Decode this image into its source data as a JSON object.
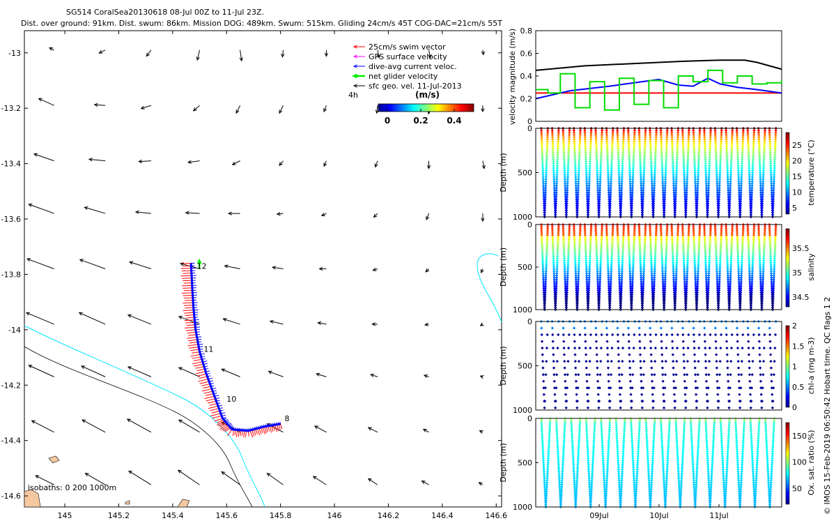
{
  "header": {
    "title_line1": "SG514 CoralSea20130618 08-Jul 00Z to 11-Jul 23Z.",
    "title_line2": "Dist. over ground: 91km. Dist. swum: 86km. Mission DOG: 489km. Swum: 515km. Gliding 24cm/s 45T COG-DAC=21cm/s 55T"
  },
  "credit": "© IMOS 15-Feb-2019 06:50:42 Hobart time. QC flags 1  2",
  "chart_data": [
    {
      "id": "map",
      "type": "vector-map",
      "xlim": [
        144.85,
        146.62
      ],
      "ylim": [
        -14.64,
        -12.92
      ],
      "xticks": [
        "145",
        "145.2",
        "145.4",
        "145.6",
        "145.8",
        "146",
        "146.2",
        "146.4",
        "146.6"
      ],
      "yticks": [
        "-13",
        "-13.2",
        "-13.4",
        "-13.6",
        "-13.8",
        "-14",
        "-14.2",
        "-14.4",
        "-14.6"
      ],
      "legend": {
        "position": "top-right",
        "items": [
          {
            "label": "25cm/s swim vector",
            "color": "#ff0000"
          },
          {
            "label": "GPS surface velocity",
            "color": "#ff00ff"
          },
          {
            "label": "dive-avg current veloc.",
            "color": "#0000ff"
          },
          {
            "label": "net glider velocity",
            "color": "#00ee00"
          },
          {
            "label": "sfc geo. vel. 11-Jul-2013",
            "color": "#000000"
          }
        ]
      },
      "colorbar": {
        "title": "(m/s)",
        "ticks": [
          "0",
          "0.2",
          "0.4"
        ]
      },
      "scale_label": "4h",
      "isobath_label": "isobaths: 0   200  1000m",
      "track": [
        [
          145.8,
          -14.34
        ],
        [
          145.74,
          -14.35
        ],
        [
          145.68,
          -14.365
        ],
        [
          145.62,
          -14.36
        ],
        [
          145.585,
          -14.32
        ],
        [
          145.555,
          -14.24
        ],
        [
          145.525,
          -14.16
        ],
        [
          145.5,
          -14.08
        ],
        [
          145.485,
          -14.0
        ],
        [
          145.477,
          -13.92
        ],
        [
          145.472,
          -13.84
        ],
        [
          145.468,
          -13.76
        ]
      ],
      "track_labels": [
        {
          "text": "12",
          "lon": 145.49,
          "lat": -13.78
        },
        {
          "text": "11",
          "lon": 145.515,
          "lat": -14.08
        },
        {
          "text": "10",
          "lon": 145.6,
          "lat": -14.26
        },
        {
          "text": "8",
          "lon": 145.815,
          "lat": -14.33
        }
      ],
      "geo_velocity_grid": {
        "lons": [
          144.96,
          145.15,
          145.32,
          145.5,
          145.65,
          145.81,
          145.97,
          146.16,
          146.35,
          146.55
        ],
        "lats": [
          -12.99,
          -13.19,
          -13.39,
          -13.58,
          -13.78,
          -13.98,
          -14.17,
          -14.37,
          -14.56
        ],
        "vectors": [
          [
            [
              -0.06,
              0.03
            ],
            [
              -0.08,
              -0.04
            ],
            [
              -0.06,
              -0.08
            ],
            [
              -0.03,
              -0.13
            ],
            [
              0.02,
              -0.14
            ],
            [
              -0.01,
              -0.09
            ],
            [
              0,
              -0.08
            ],
            [
              0.02,
              -0.1
            ],
            [
              0.02,
              -0.1
            ],
            [
              0.01,
              -0.06
            ]
          ],
          [
            [
              -0.2,
              0.09
            ],
            [
              -0.14,
              0.01
            ],
            [
              -0.13,
              -0.04
            ],
            [
              -0.08,
              -0.07
            ],
            [
              -0.05,
              -0.1
            ],
            [
              -0.05,
              -0.1
            ],
            [
              -0.03,
              -0.08
            ],
            [
              -0.01,
              -0.1
            ],
            [
              0,
              -0.11
            ],
            [
              0,
              -0.08
            ]
          ],
          [
            [
              -0.26,
              0.09
            ],
            [
              -0.21,
              0.02
            ],
            [
              -0.16,
              -0.01
            ],
            [
              -0.15,
              -0.02
            ],
            [
              -0.1,
              -0.05
            ],
            [
              -0.05,
              -0.06
            ],
            [
              -0.03,
              -0.07
            ],
            [
              -0.03,
              -0.08
            ],
            [
              0,
              -0.1
            ],
            [
              0.02,
              -0.1
            ]
          ],
          [
            [
              -0.33,
              0.12
            ],
            [
              -0.27,
              0.08
            ],
            [
              -0.2,
              0.02
            ],
            [
              -0.18,
              0.01
            ],
            [
              -0.15,
              0
            ],
            [
              -0.08,
              -0.01
            ],
            [
              -0.06,
              -0.03
            ],
            [
              -0.05,
              -0.05
            ],
            [
              -0.03,
              -0.08
            ],
            [
              0,
              -0.1
            ]
          ],
          [
            [
              -0.35,
              0.13
            ],
            [
              -0.33,
              0.12
            ],
            [
              -0.28,
              0.09
            ],
            [
              -0.25,
              0.07
            ],
            [
              -0.2,
              0.04
            ],
            [
              -0.14,
              0.02
            ],
            [
              -0.09,
              0
            ],
            [
              -0.06,
              -0.02
            ],
            [
              -0.04,
              -0.04
            ],
            [
              -0.02,
              -0.05
            ]
          ],
          [
            [
              -0.36,
              0.15
            ],
            [
              -0.34,
              0.15
            ],
            [
              -0.3,
              0.12
            ],
            [
              -0.27,
              0.1
            ],
            [
              -0.22,
              0.07
            ],
            [
              -0.17,
              0.04
            ],
            [
              -0.11,
              0.02
            ],
            [
              -0.07,
              0
            ],
            [
              -0.05,
              -0.01
            ],
            [
              -0.03,
              -0.02
            ]
          ],
          [
            [
              -0.33,
              0.15
            ],
            [
              -0.31,
              0.14
            ],
            [
              -0.3,
              0.13
            ],
            [
              -0.27,
              0.12
            ],
            [
              -0.24,
              0.1
            ],
            [
              -0.19,
              0.07
            ],
            [
              -0.13,
              0.04
            ],
            [
              -0.09,
              0.03
            ],
            [
              -0.06,
              0.02
            ],
            [
              -0.03,
              0.01
            ]
          ],
          [
            [
              -0.29,
              0.15
            ],
            [
              -0.3,
              0.16
            ],
            [
              -0.31,
              0.17
            ],
            [
              -0.27,
              0.16
            ],
            [
              -0.24,
              0.13
            ],
            [
              -0.21,
              0.11
            ],
            [
              -0.15,
              0.08
            ],
            [
              -0.12,
              0.06
            ],
            [
              -0.07,
              0.04
            ],
            [
              -0.04,
              0.02
            ]
          ],
          [
            [
              -0.24,
              0.12
            ],
            [
              -0.26,
              0.15
            ],
            [
              -0.29,
              0.18
            ],
            [
              -0.28,
              0.19
            ],
            [
              -0.24,
              0.17
            ],
            [
              -0.21,
              0.15
            ],
            [
              -0.17,
              0.11
            ],
            [
              -0.12,
              0.08
            ],
            [
              -0.09,
              0.05
            ],
            [
              -0.05,
              0.03
            ]
          ]
        ]
      }
    },
    {
      "id": "velocity",
      "type": "line",
      "ylabel": "velocity magnitude (m/s)",
      "xlim": [
        0,
        1
      ],
      "ylim": [
        0,
        0.8
      ],
      "yticks": [
        "0",
        "0.2",
        "0.4",
        "0.6",
        "0.8"
      ],
      "series": [
        {
          "color": "#000000",
          "x": [
            0,
            0.2,
            0.4,
            0.6,
            0.75,
            0.85,
            0.9,
            1.0
          ],
          "y": [
            0.45,
            0.49,
            0.51,
            0.53,
            0.54,
            0.54,
            0.52,
            0.46
          ]
        },
        {
          "color": "#ff0000",
          "x": [
            0,
            1
          ],
          "y": [
            0.25,
            0.25
          ]
        },
        {
          "color": "#0000ff",
          "x": [
            0,
            0.14,
            0.3,
            0.4,
            0.5,
            0.58,
            0.64,
            0.7,
            0.75,
            0.82,
            0.9,
            1.0
          ],
          "y": [
            0.2,
            0.27,
            0.31,
            0.34,
            0.37,
            0.32,
            0.31,
            0.38,
            0.33,
            0.3,
            0.28,
            0.25
          ]
        },
        {
          "color": "#00dd00",
          "step": true,
          "x": [
            0,
            0.05,
            0.1,
            0.16,
            0.22,
            0.28,
            0.34,
            0.4,
            0.46,
            0.52,
            0.58,
            0.64,
            0.7,
            0.76,
            0.82,
            0.88,
            0.94,
            1.0
          ],
          "y": [
            0.28,
            0.25,
            0.42,
            0.12,
            0.35,
            0.1,
            0.38,
            0.15,
            0.36,
            0.12,
            0.4,
            0.35,
            0.45,
            0.34,
            0.4,
            0.33,
            0.34,
            0.36
          ]
        }
      ]
    },
    {
      "id": "temperature",
      "type": "scatter",
      "ylabel": "Depth (m)",
      "yticks": [
        "0",
        "500",
        "1000"
      ],
      "colorbar_label": "temperature (°C)",
      "colorbar_ticks": [
        "5",
        "10",
        "15",
        "20",
        "25"
      ],
      "clim": [
        3,
        29
      ],
      "profiles": 22,
      "colormap": "jet"
    },
    {
      "id": "salinity",
      "type": "scatter",
      "ylabel": "Depth (m)",
      "yticks": [
        "0",
        "500",
        "1000"
      ],
      "colorbar_label": "salinity",
      "colorbar_ticks": [
        "34.5",
        "35",
        "35.5"
      ],
      "clim": [
        34.3,
        35.9
      ],
      "profiles": 22,
      "colormap": "jet"
    },
    {
      "id": "chla",
      "type": "scatter",
      "ylabel": "Depth (m)",
      "yticks": [
        "0",
        "500",
        "1000"
      ],
      "colorbar_label": "chl-a (mg m-3)",
      "colorbar_ticks": [
        "0",
        "0.5",
        "1",
        "1.5",
        "2"
      ],
      "clim": [
        0,
        2
      ],
      "profiles": 22,
      "colormap": "jet"
    },
    {
      "id": "oxygen",
      "type": "scatter",
      "ylabel": "Depth (m)",
      "yticks": [
        "0",
        "500",
        "1000"
      ],
      "colorbar_label": "Ox. sat. ratio (%)",
      "colorbar_ticks": [
        "50",
        "100",
        "150"
      ],
      "clim": [
        20,
        175
      ],
      "profiles": 16,
      "colormap": "jet",
      "xticks": [
        "09Jul",
        "10Jul",
        "11Jul"
      ]
    }
  ]
}
